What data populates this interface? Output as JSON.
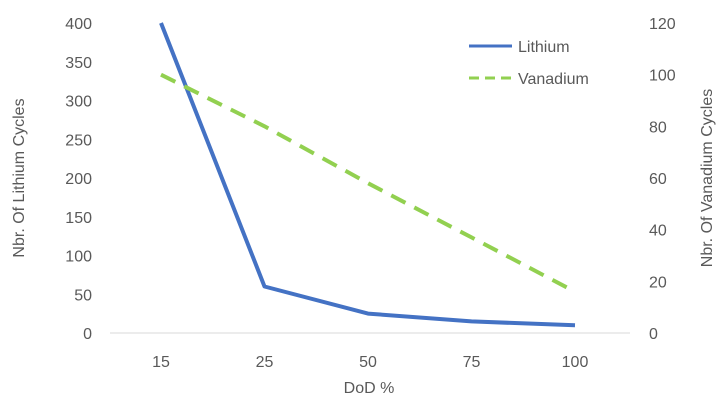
{
  "chart_data": {
    "type": "line",
    "title": "",
    "categories": [
      "15",
      "25",
      "50",
      "75",
      "100"
    ],
    "xlabel": "DoD %",
    "y_left": {
      "label": "Nbr. Of Lithium Cycles",
      "ylim": [
        0,
        400
      ],
      "ticks": [
        0,
        50,
        100,
        150,
        200,
        250,
        300,
        350,
        400
      ]
    },
    "y_right": {
      "label": "Nbr. Of Vanadium Cycles",
      "ylim": [
        0,
        120
      ],
      "ticks": [
        0,
        20,
        40,
        60,
        80,
        100,
        120
      ]
    },
    "series": [
      {
        "name": "Lithium",
        "axis": "left",
        "style": "solid",
        "color": "#4472C4",
        "values": [
          400,
          60,
          25,
          15,
          10
        ]
      },
      {
        "name": "Vanadium",
        "axis": "right",
        "style": "dashed",
        "color": "#92D050",
        "values": [
          100,
          80,
          58,
          37,
          16
        ]
      }
    ],
    "legend_position": "top-right",
    "grid": false
  }
}
